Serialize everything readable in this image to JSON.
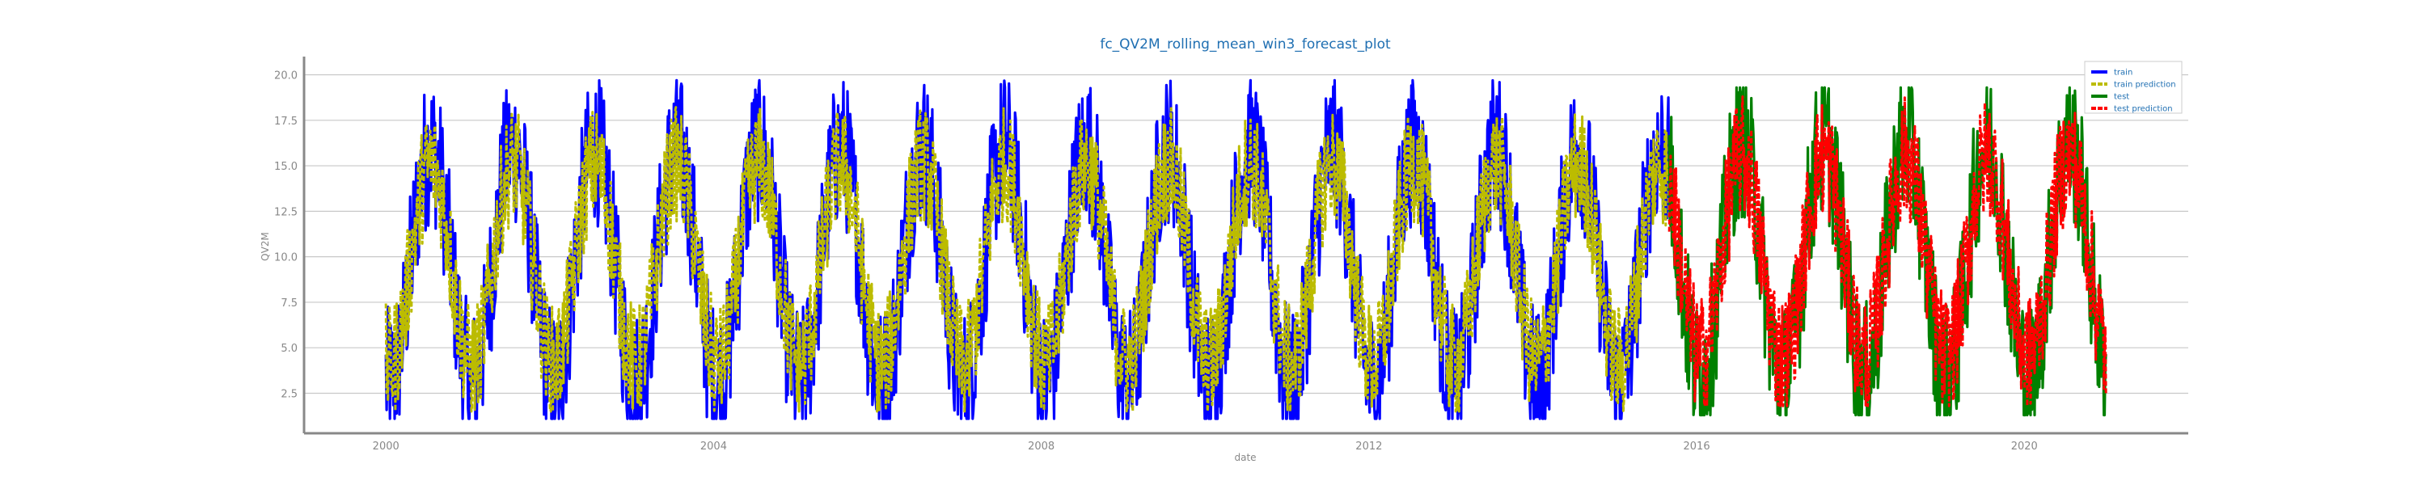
{
  "chart_data": {
    "type": "line",
    "title": "fc_QV2M_rolling_mean_win3_forecast_plot",
    "xlabel": "date",
    "ylabel": "QV2M",
    "x_ticks": [
      "2000",
      "2004",
      "2008",
      "2012",
      "2016",
      "2020"
    ],
    "y_ticks": [
      "2.5",
      "5.0",
      "7.5",
      "10.0",
      "12.5",
      "15.0",
      "17.5",
      "20.0"
    ],
    "xlim": [
      "1999-01-01",
      "2022-01-01"
    ],
    "ylim": [
      0.3,
      21
    ],
    "grid": "horizontal",
    "legend_position": "top-right",
    "train_range": [
      "2000-01-01",
      "2015-09-01"
    ],
    "test_range": [
      "2015-09-01",
      "2021-01-01"
    ],
    "series": [
      {
        "name": "train",
        "color": "#0000ff",
        "style": "solid",
        "range": [
          1.1,
          19.7
        ],
        "approx_mean": 9.5,
        "seasonal_amplitude": 6.5
      },
      {
        "name": "train prediction",
        "color": "#bcbc00",
        "style": "dashed",
        "range": [
          1.5,
          18.8
        ],
        "approx_mean": 9.6,
        "seasonal_amplitude": 5.5
      },
      {
        "name": "test",
        "color": "#008000",
        "style": "solid",
        "range": [
          1.3,
          19.3
        ],
        "approx_mean": 9.8,
        "seasonal_amplitude": 6.5
      },
      {
        "name": "test prediction",
        "color": "#ff0000",
        "style": "dashed",
        "range": [
          1.8,
          18.8
        ],
        "approx_mean": 10.0,
        "seasonal_amplitude": 5.5
      }
    ]
  }
}
